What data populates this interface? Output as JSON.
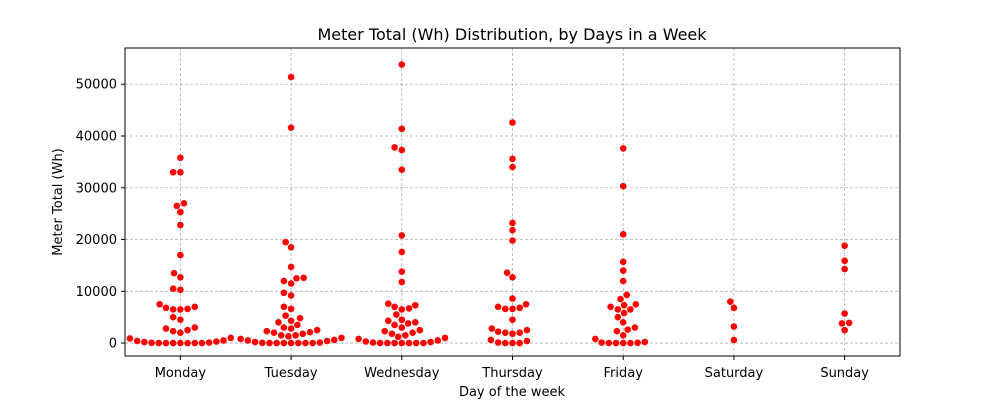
{
  "chart_data": {
    "type": "scatter",
    "title": "Meter Total (Wh) Distribution, by Days in a Week",
    "xlabel": "Day of the week",
    "ylabel": "Meter Total (Wh)",
    "ylim": [
      -2500,
      57000
    ],
    "yticks": [
      0,
      10000,
      20000,
      30000,
      40000,
      50000
    ],
    "grid": true,
    "marker_color": "#ff0000",
    "categories": [
      "Monday",
      "Tuesday",
      "Wednesday",
      "Thursday",
      "Friday",
      "Saturday",
      "Sunday"
    ],
    "values": {
      "Monday": [
        35800,
        33000,
        33000,
        27000,
        26500,
        25300,
        22800,
        17000,
        13500,
        12700,
        10500,
        10300,
        7500,
        7000,
        6800,
        6600,
        6500,
        6500,
        5000,
        4500,
        3000,
        2800,
        2500,
        2300,
        2000,
        1000,
        500,
        300,
        200,
        100,
        50,
        0,
        0,
        0,
        0,
        0,
        0,
        0,
        400,
        900
      ],
      "Tuesday": [
        51400,
        41600,
        19500,
        18500,
        14700,
        12600,
        12500,
        12000,
        11500,
        9700,
        9200,
        7000,
        6600,
        5300,
        4800,
        4300,
        4000,
        3500,
        3000,
        2800,
        2500,
        2300,
        2100,
        2000,
        1800,
        1500,
        1500,
        1300,
        1000,
        800,
        600,
        500,
        400,
        200,
        100,
        50,
        0,
        0,
        0,
        0,
        0,
        0,
        0
      ],
      "Wednesday": [
        53800,
        41400,
        37800,
        37300,
        33500,
        20800,
        17600,
        13800,
        11800,
        7600,
        7300,
        7000,
        6700,
        6500,
        5500,
        4500,
        4300,
        4000,
        3800,
        3500,
        3000,
        2500,
        2300,
        2000,
        1800,
        1500,
        1200,
        1000,
        800,
        500,
        300,
        200,
        100,
        0,
        0,
        0,
        0,
        0,
        0,
        0
      ],
      "Thursday": [
        42600,
        35600,
        34000,
        23200,
        21800,
        19800,
        13600,
        12700,
        8600,
        7500,
        7000,
        6800,
        6600,
        6600,
        4500,
        2800,
        2500,
        2200,
        2000,
        2000,
        1800,
        600,
        400,
        100,
        0,
        0,
        0
      ],
      "Friday": [
        37600,
        30300,
        21000,
        15700,
        14000,
        12000,
        9300,
        8500,
        7500,
        7300,
        7000,
        6500,
        6500,
        5800,
        5000,
        4000,
        3000,
        2600,
        2300,
        1500,
        800,
        200,
        100,
        50,
        0,
        0,
        0,
        0
      ],
      "Saturday": [
        8000,
        6800,
        3200,
        600
      ],
      "Sunday": [
        18800,
        15900,
        14300,
        5700,
        3900,
        3800,
        2500
      ]
    }
  }
}
